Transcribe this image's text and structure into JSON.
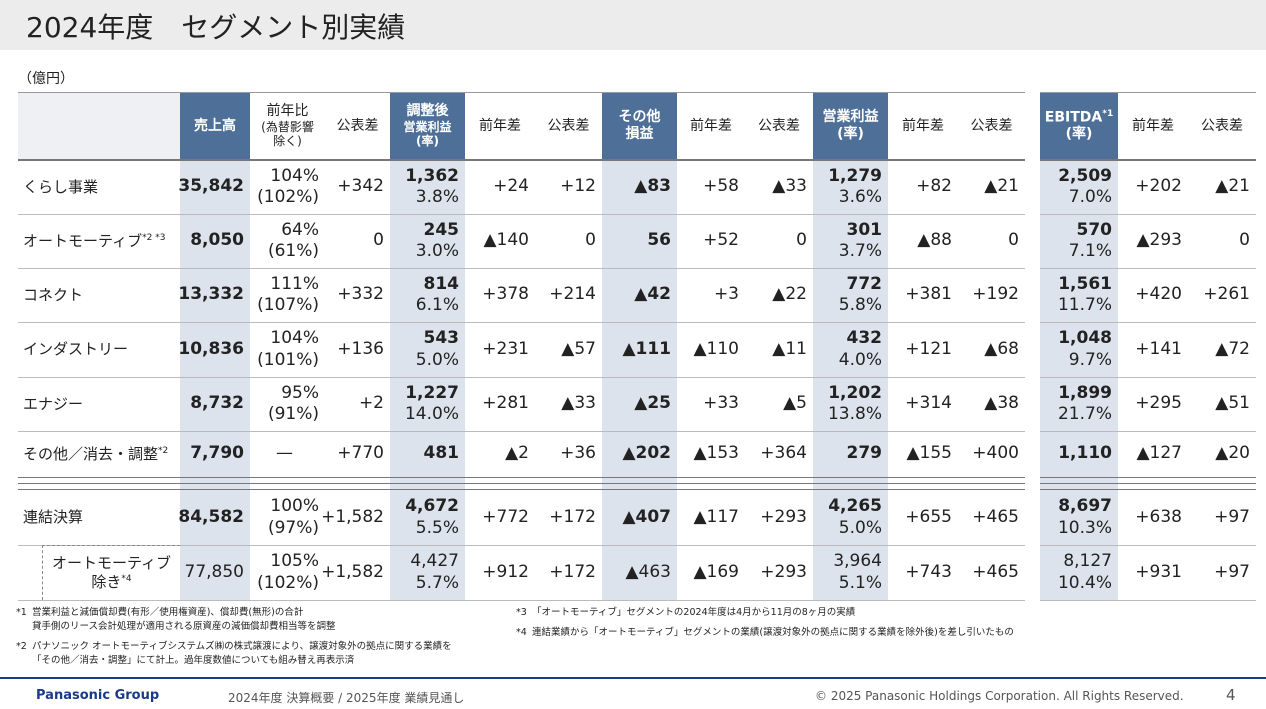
{
  "header": {
    "title": "2024年度　セグメント別実績",
    "unit": "（億円）"
  },
  "table": {
    "columns": [
      {
        "lines": [
          "売上高"
        ]
      },
      {
        "lines": [
          "前年比",
          "(為替影響",
          "除く)"
        ]
      },
      {
        "lines": [
          "公表差"
        ]
      },
      {
        "lines": [
          "調整後",
          "営業利益",
          "(率)"
        ]
      },
      {
        "lines": [
          "前年差"
        ]
      },
      {
        "lines": [
          "公表差"
        ]
      },
      {
        "lines": [
          "その他",
          "損益"
        ]
      },
      {
        "lines": [
          "前年差"
        ]
      },
      {
        "lines": [
          "公表差"
        ]
      },
      {
        "lines": [
          "営業利益",
          "(率)"
        ]
      },
      {
        "lines": [
          "前年差"
        ]
      },
      {
        "lines": [
          "公表差"
        ]
      },
      {
        "lines": [
          "EBITDA",
          "(率)"
        ],
        "note": "*1"
      },
      {
        "lines": [
          "前年差"
        ]
      },
      {
        "lines": [
          "公表差"
        ]
      }
    ],
    "rows": [
      {
        "label": [
          "くらし事業"
        ],
        "cells": [
          "35,842",
          [
            "104%",
            "(102%)"
          ],
          "+342",
          [
            "1,362",
            "3.8%"
          ],
          "+24",
          "+12",
          "▲83",
          "+58",
          "▲33",
          [
            "1,279",
            "3.6%"
          ],
          "+82",
          "▲21",
          [
            "2,509",
            "7.0%"
          ],
          "+202",
          "▲21"
        ]
      },
      {
        "label": [
          "オートモーティブ"
        ],
        "note": "*2 *3",
        "cells": [
          "8,050",
          [
            "64%",
            "(61%)"
          ],
          "0",
          [
            "245",
            "3.0%"
          ],
          "▲140",
          "0",
          "56",
          "+52",
          "0",
          [
            "301",
            "3.7%"
          ],
          "▲88",
          "0",
          [
            "570",
            "7.1%"
          ],
          "▲293",
          "0"
        ]
      },
      {
        "label": [
          "コネクト"
        ],
        "cells": [
          "13,332",
          [
            "111%",
            "(107%)"
          ],
          "+332",
          [
            "814",
            "6.1%"
          ],
          "+378",
          "+214",
          "▲42",
          "+3",
          "▲22",
          [
            "772",
            "5.8%"
          ],
          "+381",
          "+192",
          [
            "1,561",
            "11.7%"
          ],
          "+420",
          "+261"
        ]
      },
      {
        "label": [
          "インダストリー"
        ],
        "cells": [
          "10,836",
          [
            "104%",
            "(101%)"
          ],
          "+136",
          [
            "543",
            "5.0%"
          ],
          "+231",
          "▲57",
          "▲111",
          "▲110",
          "▲11",
          [
            "432",
            "4.0%"
          ],
          "+121",
          "▲68",
          [
            "1,048",
            "9.7%"
          ],
          "+141",
          "▲72"
        ]
      },
      {
        "label": [
          "エナジー"
        ],
        "cells": [
          "8,732",
          [
            "95%",
            "(91%)"
          ],
          "+2",
          [
            "1,227",
            "14.0%"
          ],
          "+281",
          "▲33",
          "▲25",
          "+33",
          "▲5",
          [
            "1,202",
            "13.8%"
          ],
          "+314",
          "▲38",
          [
            "1,899",
            "21.7%"
          ],
          "+295",
          "▲51"
        ]
      },
      {
        "label": [
          "その他／消去・調整"
        ],
        "note": "*2",
        "cells": [
          "7,790",
          "—",
          "+770",
          "481",
          "▲2",
          "+36",
          "▲202",
          "▲153",
          "+364",
          "279",
          "▲155",
          "+400",
          "1,110",
          "▲127",
          "▲20"
        ]
      },
      {
        "label": [
          "連結決算"
        ],
        "cells": [
          "84,582",
          [
            "100%",
            "(97%)"
          ],
          "+1,582",
          [
            "4,672",
            "5.5%"
          ],
          "+772",
          "+172",
          "▲407",
          "▲117",
          "+293",
          [
            "4,265",
            "5.0%"
          ],
          "+655",
          "+465",
          [
            "8,697",
            "10.3%"
          ],
          "+638",
          "+97"
        ]
      },
      {
        "label": [
          "オートモーティブ",
          "除き"
        ],
        "note": "*4",
        "cells": [
          "77,850",
          [
            "105%",
            "(102%)"
          ],
          "+1,582",
          [
            "4,427",
            "5.7%"
          ],
          "+912",
          "+172",
          "▲463",
          "▲169",
          "+293",
          [
            "3,964",
            "5.1%"
          ],
          "+743",
          "+465",
          [
            "8,127",
            "10.4%"
          ],
          "+931",
          "+97"
        ]
      }
    ]
  },
  "footnotes": {
    "left": [
      {
        "mark": "*1",
        "lines": [
          "営業利益と減価償却費(有形／使用権資産)、償却費(無形)の合計",
          "貸手側のリース会計処理が適用される原資産の減価償却費相当等を調整"
        ]
      },
      {
        "mark": "*2",
        "lines": [
          "パナソニック オートモーティブシステムズ㈱の株式譲渡により、譲渡対象外の拠点に関する業績を",
          "「その他／消去・調整」にて計上。過年度数値についても組み替え再表示済"
        ]
      }
    ],
    "right": [
      {
        "mark": "*3",
        "lines": [
          "「オートモーティブ」セグメントの2024年度は4月から11月の8ヶ月の実績"
        ]
      },
      {
        "mark": "*4",
        "lines": [
          "連結業績から「オートモーティブ」セグメントの業績(譲渡対象外の拠点に関する業績を除外後)を差し引いたもの"
        ]
      }
    ]
  },
  "footer": {
    "brand": "Panasonic Group",
    "subtitle": "2024年度 決算概要 / 2025年度 業績見通し",
    "copyright": "© 2025 Panasonic Holdings Corporation. All Rights Reserved.",
    "page": "4"
  }
}
